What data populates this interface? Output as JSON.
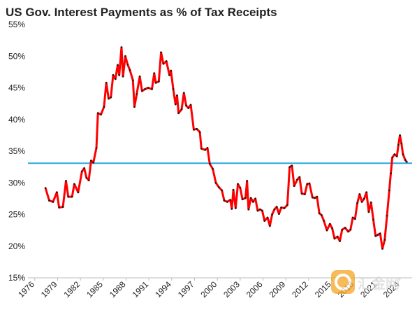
{
  "chart_data": {
    "type": "line",
    "title": "US Gov. Interest Payments as % of Tax Receipts",
    "watermark": "汇金网",
    "x": [
      1977.4,
      1977.9,
      1978.4,
      1978.9,
      1979.2,
      1979.7,
      1980.1,
      1980.4,
      1980.9,
      1981.2,
      1981.7,
      1982.2,
      1982.5,
      1982.8,
      1983.1,
      1983.4,
      1983.7,
      1984.1,
      1984.3,
      1984.7,
      1985.1,
      1985.4,
      1985.7,
      1986.0,
      1986.3,
      1986.6,
      1986.9,
      1987.1,
      1987.4,
      1987.6,
      1987.9,
      1988.2,
      1988.5,
      1988.9,
      1989.1,
      1989.4,
      1989.8,
      1990.1,
      1990.5,
      1990.9,
      1991.4,
      1991.7,
      1991.9,
      1992.3,
      1992.6,
      1992.9,
      1993.3,
      1993.7,
      1993.9,
      1994.2,
      1994.5,
      1994.7,
      1994.9,
      1995.3,
      1995.6,
      1995.9,
      1996.2,
      1996.5,
      1996.9,
      1997.3,
      1997.7,
      1997.9,
      1998.4,
      1998.7,
      1999.0,
      1999.4,
      1999.8,
      2000.2,
      2000.6,
      2000.9,
      2001.3,
      2001.7,
      2001.9,
      2002.1,
      2002.4,
      2002.7,
      2003.0,
      2003.3,
      2003.7,
      2003.9,
      2004.1,
      2004.4,
      2004.7,
      2005.0,
      2005.3,
      2005.6,
      2005.9,
      2006.2,
      2006.6,
      2006.9,
      2007.2,
      2007.5,
      2007.8,
      2008.1,
      2008.4,
      2008.8,
      2009.2,
      2009.5,
      2009.8,
      2010.1,
      2010.5,
      2010.8,
      2011.1,
      2011.5,
      2011.8,
      2012.1,
      2012.5,
      2012.8,
      2013.1,
      2013.4,
      2013.7,
      2014.0,
      2014.4,
      2014.8,
      2015.1,
      2015.4,
      2015.8,
      2016.1,
      2016.4,
      2016.8,
      2017.2,
      2017.5,
      2017.8,
      2018.1,
      2018.4,
      2018.7,
      2019.0,
      2019.3,
      2019.6,
      2019.9,
      2020.2,
      2020.5,
      2020.8,
      2021.1,
      2021.4,
      2021.7,
      2022.0,
      2022.3,
      2022.6,
      2022.8,
      2023.0,
      2023.3,
      2023.6,
      2023.8,
      2024.0,
      2024.2,
      2024.4,
      2024.7,
      2024.9
    ],
    "series": [
      {
        "color": "#ff0000",
        "marker_color": "#1a1a1a",
        "values": [
          29.2,
          27.2,
          27.0,
          28.5,
          26.1,
          26.2,
          30.3,
          27.8,
          27.8,
          29.8,
          28.5,
          31.8,
          32.3,
          30.8,
          30.4,
          33.5,
          33.2,
          35.5,
          41.0,
          40.8,
          42.0,
          45.8,
          43.3,
          43.5,
          47.0,
          46.4,
          48.6,
          47.0,
          51.4,
          46.8,
          50.0,
          48.7,
          47.8,
          46.2,
          42.0,
          44.0,
          46.8,
          44.5,
          44.8,
          45.0,
          44.8,
          47.3,
          45.8,
          46.0,
          50.6,
          48.8,
          49.2,
          47.0,
          47.7,
          44.8,
          42.4,
          43.8,
          41.0,
          41.6,
          44.2,
          42.2,
          41.8,
          42.3,
          38.4,
          38.5,
          38.0,
          35.4,
          35.2,
          35.5,
          33.0,
          32.2,
          30.0,
          29.3,
          28.8,
          27.2,
          27.0,
          27.3,
          25.9,
          28.9,
          26.0,
          29.8,
          29.2,
          27.4,
          27.6,
          30.3,
          25.8,
          27.6,
          27.0,
          27.5,
          25.6,
          25.8,
          25.6,
          24.0,
          24.5,
          23.2,
          25.0,
          25.8,
          26.2,
          25.1,
          26.1,
          26.0,
          26.5,
          32.5,
          32.7,
          29.5,
          30.5,
          30.9,
          28.3,
          28.2,
          29.8,
          29.9,
          27.7,
          27.6,
          27.8,
          25.2,
          24.9,
          24.0,
          22.5,
          23.5,
          22.8,
          21.2,
          21.5,
          20.8,
          22.6,
          22.9,
          22.3,
          22.6,
          24.5,
          24.3,
          26.8,
          28.2,
          27.0,
          27.5,
          28.5,
          25.4,
          26.9,
          24.2,
          21.6,
          21.8,
          22.0,
          19.6,
          21.0,
          24.8,
          28.8,
          31.5,
          34.0,
          34.5,
          34.2,
          36.0,
          37.5,
          36.2,
          34.5,
          33.6,
          33.3
        ]
      }
    ],
    "reference_line": {
      "value": 33.1,
      "color": "#29a8e0"
    },
    "xlim": [
      1975.1,
      2025.6
    ],
    "xticks": [
      1976,
      1979,
      1982,
      1985,
      1988,
      1991,
      1994,
      1997,
      2000,
      2003,
      2006,
      2009,
      2012,
      2015,
      2018,
      2021,
      2024
    ],
    "ylim": [
      15,
      55
    ],
    "yticks": [
      {
        "value": 15,
        "label": "15%"
      },
      {
        "value": 20,
        "label": "20%"
      },
      {
        "value": 25,
        "label": "25%"
      },
      {
        "value": 30,
        "label": "30%"
      },
      {
        "value": 35,
        "label": "35%"
      },
      {
        "value": 40,
        "label": "40%"
      },
      {
        "value": 45,
        "label": "45%"
      },
      {
        "value": 50,
        "label": "50%"
      },
      {
        "value": 55,
        "label": "55%"
      }
    ],
    "grid": false
  }
}
